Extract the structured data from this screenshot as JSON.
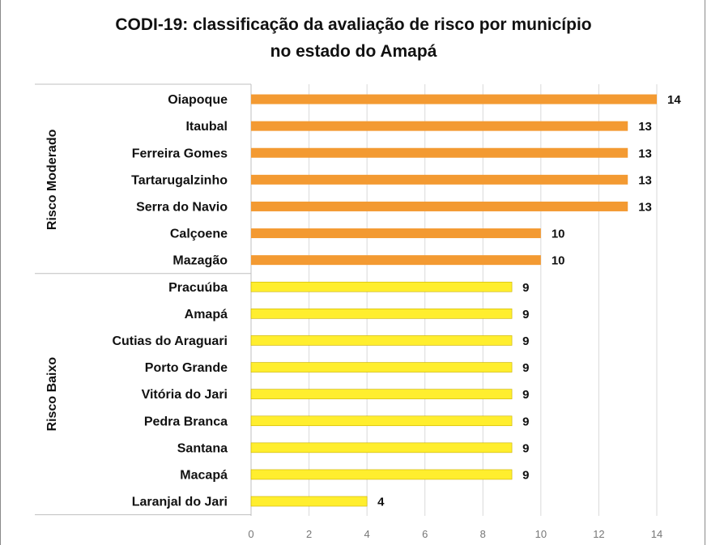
{
  "chart_data": {
    "type": "bar",
    "orientation": "horizontal",
    "title": "CODI-19: classificação da avaliação de risco por município",
    "subtitle": "no estado do Amapá",
    "xlim": [
      0,
      14
    ],
    "x_ticks": [
      "0",
      "2",
      "4",
      "6",
      "8",
      "10",
      "12",
      "14"
    ],
    "grid": "vertical",
    "groups": [
      {
        "label": "Risco Moderado",
        "color": "#f39a32",
        "categories": [
          "Oiapoque",
          "Itaubal",
          "Ferreira Gomes",
          "Tartarugalzinho",
          "Serra do Navio",
          "Calçoene",
          "Mazagão"
        ],
        "values": [
          14,
          13,
          13,
          13,
          13,
          10,
          10
        ]
      },
      {
        "label": "Risco Baixo",
        "color": "#ffee2e",
        "categories": [
          "Pracuúba",
          "Amapá",
          "Cutias do Araguari",
          "Porto Grande",
          "Vitória do Jari",
          "Pedra Branca",
          "Santana",
          "Macapá",
          "Laranjal do Jari"
        ],
        "values": [
          9,
          9,
          9,
          9,
          9,
          9,
          9,
          9,
          4
        ]
      }
    ]
  }
}
